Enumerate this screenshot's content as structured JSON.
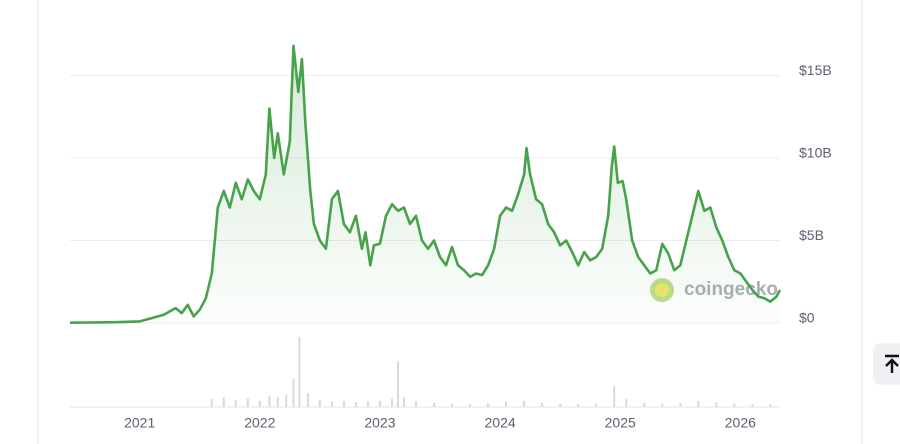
{
  "chart_data": {
    "type": "line",
    "watermark": "coingecko",
    "x": [
      2020.42,
      2020.6,
      2020.8,
      2021.0,
      2021.1,
      2021.2,
      2021.3,
      2021.35,
      2021.4,
      2021.45,
      2021.5,
      2021.55,
      2021.6,
      2021.65,
      2021.7,
      2021.75,
      2021.8,
      2021.85,
      2021.9,
      2021.95,
      2022.0,
      2022.05,
      2022.08,
      2022.12,
      2022.15,
      2022.2,
      2022.25,
      2022.28,
      2022.32,
      2022.35,
      2022.38,
      2022.42,
      2022.45,
      2022.5,
      2022.55,
      2022.6,
      2022.65,
      2022.7,
      2022.75,
      2022.8,
      2022.85,
      2022.88,
      2022.92,
      2022.95,
      2023.0,
      2023.05,
      2023.1,
      2023.15,
      2023.2,
      2023.25,
      2023.3,
      2023.35,
      2023.4,
      2023.45,
      2023.5,
      2023.55,
      2023.6,
      2023.65,
      2023.7,
      2023.75,
      2023.8,
      2023.85,
      2023.9,
      2023.95,
      2024.0,
      2024.05,
      2024.1,
      2024.15,
      2024.2,
      2024.22,
      2024.25,
      2024.3,
      2024.35,
      2024.4,
      2024.45,
      2024.5,
      2024.55,
      2024.6,
      2024.65,
      2024.7,
      2024.75,
      2024.8,
      2024.85,
      2024.9,
      2024.93,
      2024.95,
      2024.98,
      2025.02,
      2025.05,
      2025.1,
      2025.15,
      2025.2,
      2025.25,
      2025.3,
      2025.35,
      2025.4,
      2025.45,
      2025.5,
      2025.55,
      2025.6,
      2025.65,
      2025.7,
      2025.75,
      2025.8,
      2025.85,
      2025.9,
      2025.95,
      2026.0,
      2026.05,
      2026.1,
      2026.15,
      2026.2,
      2026.25,
      2026.3,
      2026.33
    ],
    "series": [
      {
        "color": "#46a34a",
        "values": [
          0.02,
          0.03,
          0.05,
          0.1,
          0.3,
          0.5,
          0.9,
          0.6,
          1.1,
          0.4,
          0.8,
          1.5,
          3,
          7,
          8,
          7,
          8.5,
          7.5,
          8.7,
          8,
          7.5,
          9,
          13,
          10,
          11.5,
          9,
          11,
          16.8,
          14,
          16,
          12,
          8,
          6,
          5,
          4.5,
          7.5,
          8,
          6,
          5.5,
          6.5,
          4.5,
          5.5,
          3.5,
          4.7,
          4.8,
          6.5,
          7.2,
          6.8,
          7,
          6,
          6.5,
          5,
          4.5,
          5,
          4,
          3.5,
          4.6,
          3.5,
          3.2,
          2.8,
          3,
          2.9,
          3.5,
          4.5,
          6.5,
          7,
          6.8,
          7.8,
          9,
          10.6,
          9,
          7.5,
          7.2,
          6,
          5.5,
          4.7,
          5,
          4.3,
          3.5,
          4.3,
          3.8,
          4,
          4.5,
          6.5,
          9.5,
          10.7,
          8.5,
          8.6,
          7.5,
          5,
          4,
          3.5,
          3,
          3.2,
          4.8,
          4.2,
          3.2,
          3.5,
          5,
          6.5,
          8,
          6.8,
          7,
          5.8,
          5,
          4,
          3.2,
          3.0,
          2.5,
          2,
          1.6,
          1.5,
          1.3,
          1.6,
          2
        ]
      }
    ],
    "volume": {
      "x": [
        2021.6,
        2021.7,
        2021.8,
        2021.9,
        2022.0,
        2022.08,
        2022.15,
        2022.22,
        2022.28,
        2022.33,
        2022.4,
        2022.5,
        2022.6,
        2022.7,
        2022.8,
        2022.9,
        2023.0,
        2023.1,
        2023.15,
        2023.2,
        2023.3,
        2023.45,
        2023.6,
        2023.75,
        2023.9,
        2024.05,
        2024.2,
        2024.35,
        2024.5,
        2024.65,
        2024.8,
        2024.95,
        2025.05,
        2025.2,
        2025.35,
        2025.5,
        2025.65,
        2025.8,
        2025.95,
        2026.1,
        2026.25
      ],
      "values": [
        12,
        14,
        10,
        12,
        9,
        16,
        14,
        18,
        40,
        100,
        20,
        10,
        8,
        9,
        7,
        8,
        9,
        12,
        65,
        14,
        8,
        6,
        5,
        4,
        5,
        8,
        9,
        6,
        5,
        4,
        5,
        30,
        12,
        6,
        5,
        6,
        9,
        7,
        5,
        4,
        4
      ],
      "ylim": [
        0,
        100
      ],
      "color": "#d5d9e0"
    },
    "xlim": [
      2020.42,
      2026.33
    ],
    "xticks": [
      2021,
      2022,
      2023,
      2024,
      2025,
      2026
    ],
    "ylim": [
      0,
      17
    ],
    "yticks": [
      {
        "value": 0,
        "label": "$0"
      },
      {
        "value": 5,
        "label": "$5B"
      },
      {
        "value": 10,
        "label": "$10B"
      },
      {
        "value": 15,
        "label": "$15B"
      }
    ],
    "grid": true
  }
}
